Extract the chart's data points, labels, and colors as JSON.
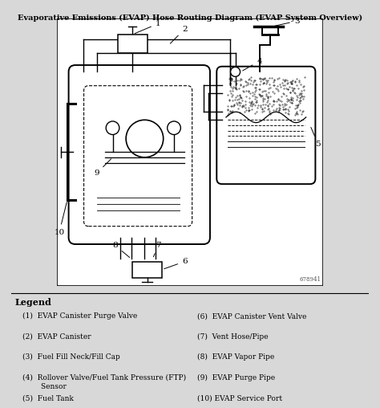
{
  "title": "Evaporative Emissions (EVAP) Hose Routing Diagram (EVAP System Overview)",
  "bg_color": "#d8d8d8",
  "diagram_bg": "#ffffff",
  "line_color": "#000000",
  "legend_title": "Legend",
  "legend_items_left": [
    "(1)  EVAP Canister Purge Valve",
    "(2)  EVAP Canister",
    "(3)  Fuel Fill Neck/Fill Cap",
    "(4)  Rollover Valve/Fuel Tank Pressure (FTP)\n        Sensor",
    "(5)  Fuel Tank"
  ],
  "legend_items_right": [
    "(6)  EVAP Canister Vent Valve",
    "(7)  Vent Hose/Pipe",
    "(8)  EVAP Vapor Pipe",
    "(9)  EVAP Purge Pipe",
    "(10) EVAP Service Port"
  ],
  "figure_number": "678941"
}
